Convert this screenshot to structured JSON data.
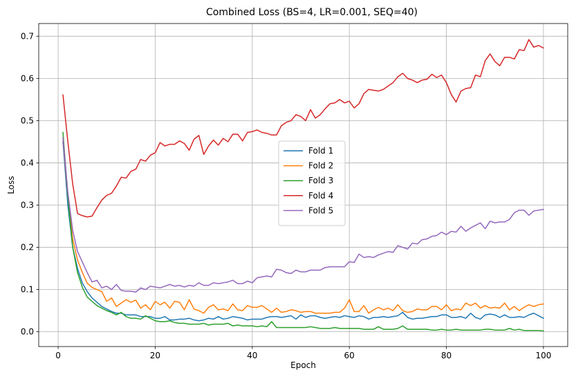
{
  "chart_data": {
    "type": "line",
    "title": "Combined Loss (BS=4, LR=0.001, SEQ=40)",
    "xlabel": "Epoch",
    "ylabel": "Loss",
    "xlim": [
      -4,
      105
    ],
    "ylim": [
      -0.035,
      0.73
    ],
    "x_ticks": [
      0,
      20,
      40,
      60,
      80,
      100
    ],
    "y_ticks": [
      0.0,
      0.1,
      0.2,
      0.3,
      0.4,
      0.5,
      0.6,
      0.7
    ],
    "grid": true,
    "legend_position": "center-right",
    "x": [
      1,
      2,
      3,
      4,
      5,
      6,
      7,
      8,
      9,
      10,
      11,
      12,
      13,
      14,
      15,
      16,
      17,
      18,
      19,
      20,
      21,
      22,
      23,
      24,
      25,
      26,
      27,
      28,
      29,
      30,
      31,
      32,
      33,
      34,
      35,
      36,
      37,
      38,
      39,
      40,
      41,
      42,
      43,
      44,
      45,
      46,
      47,
      48,
      49,
      50,
      51,
      52,
      53,
      54,
      55,
      56,
      57,
      58,
      59,
      60,
      61,
      62,
      63,
      64,
      65,
      66,
      67,
      68,
      69,
      70,
      71,
      72,
      73,
      74,
      75,
      76,
      77,
      78,
      79,
      80,
      81,
      82,
      83,
      84,
      85,
      86,
      87,
      88,
      89,
      90,
      91,
      92,
      93,
      94,
      95,
      96,
      97,
      98,
      99,
      100
    ],
    "series": [
      {
        "name": "Fold 1",
        "color": "#1f77b4",
        "values": [
          0.45,
          0.3,
          0.2,
          0.15,
          0.115,
          0.095,
          0.08,
          0.07,
          0.06,
          0.054,
          0.048,
          0.044,
          0.044,
          0.04,
          0.04,
          0.04,
          0.036,
          0.036,
          0.036,
          0.032,
          0.032,
          0.036,
          0.028,
          0.028,
          0.03,
          0.03,
          0.032,
          0.028,
          0.026,
          0.028,
          0.032,
          0.03,
          0.036,
          0.03,
          0.032,
          0.036,
          0.034,
          0.032,
          0.028,
          0.03,
          0.03,
          0.03,
          0.034,
          0.036,
          0.036,
          0.034,
          0.036,
          0.038,
          0.03,
          0.04,
          0.034,
          0.038,
          0.038,
          0.034,
          0.032,
          0.034,
          0.036,
          0.034,
          0.038,
          0.036,
          0.034,
          0.038,
          0.036,
          0.03,
          0.034,
          0.034,
          0.036,
          0.034,
          0.036,
          0.038,
          0.046,
          0.034,
          0.03,
          0.032,
          0.032,
          0.034,
          0.036,
          0.036,
          0.04,
          0.04,
          0.034,
          0.034,
          0.036,
          0.032,
          0.044,
          0.034,
          0.03,
          0.04,
          0.042,
          0.04,
          0.034,
          0.04,
          0.034,
          0.034,
          0.036,
          0.034,
          0.04,
          0.044,
          0.038,
          0.032
        ]
      },
      {
        "name": "Fold 2",
        "color": "#ff7f0e",
        "values": [
          0.46,
          0.32,
          0.22,
          0.17,
          0.14,
          0.115,
          0.105,
          0.1,
          0.095,
          0.072,
          0.08,
          0.06,
          0.068,
          0.076,
          0.07,
          0.075,
          0.056,
          0.064,
          0.052,
          0.072,
          0.064,
          0.07,
          0.056,
          0.072,
          0.07,
          0.052,
          0.076,
          0.054,
          0.05,
          0.044,
          0.058,
          0.064,
          0.052,
          0.054,
          0.05,
          0.066,
          0.052,
          0.05,
          0.062,
          0.058,
          0.058,
          0.062,
          0.054,
          0.046,
          0.056,
          0.046,
          0.048,
          0.052,
          0.05,
          0.046,
          0.048,
          0.048,
          0.044,
          0.044,
          0.044,
          0.044,
          0.046,
          0.046,
          0.056,
          0.076,
          0.048,
          0.048,
          0.062,
          0.044,
          0.052,
          0.058,
          0.052,
          0.056,
          0.05,
          0.064,
          0.05,
          0.046,
          0.048,
          0.054,
          0.052,
          0.052,
          0.06,
          0.06,
          0.052,
          0.064,
          0.05,
          0.054,
          0.052,
          0.068,
          0.062,
          0.068,
          0.056,
          0.062,
          0.056,
          0.058,
          0.056,
          0.068,
          0.052,
          0.06,
          0.05,
          0.058,
          0.064,
          0.06,
          0.064,
          0.066
        ]
      },
      {
        "name": "Fold 3",
        "color": "#2ca02c",
        "values": [
          0.472,
          0.32,
          0.2,
          0.14,
          0.105,
          0.082,
          0.072,
          0.062,
          0.056,
          0.05,
          0.046,
          0.04,
          0.046,
          0.036,
          0.032,
          0.032,
          0.03,
          0.038,
          0.032,
          0.026,
          0.024,
          0.024,
          0.026,
          0.022,
          0.02,
          0.02,
          0.018,
          0.018,
          0.018,
          0.02,
          0.016,
          0.018,
          0.018,
          0.018,
          0.02,
          0.014,
          0.016,
          0.014,
          0.014,
          0.014,
          0.012,
          0.014,
          0.012,
          0.024,
          0.01,
          0.01,
          0.01,
          0.01,
          0.01,
          0.01,
          0.01,
          0.012,
          0.01,
          0.008,
          0.008,
          0.008,
          0.01,
          0.008,
          0.008,
          0.008,
          0.008,
          0.008,
          0.006,
          0.006,
          0.006,
          0.012,
          0.006,
          0.006,
          0.006,
          0.008,
          0.014,
          0.006,
          0.006,
          0.006,
          0.006,
          0.006,
          0.004,
          0.004,
          0.006,
          0.004,
          0.004,
          0.006,
          0.004,
          0.004,
          0.004,
          0.004,
          0.004,
          0.006,
          0.006,
          0.004,
          0.004,
          0.004,
          0.008,
          0.004,
          0.006,
          0.003,
          0.003,
          0.003,
          0.003,
          0.002
        ]
      },
      {
        "name": "Fold 4",
        "color": "#d62728",
        "values": [
          0.561,
          0.45,
          0.35,
          0.28,
          0.275,
          0.272,
          0.274,
          0.294,
          0.312,
          0.323,
          0.328,
          0.345,
          0.366,
          0.364,
          0.38,
          0.385,
          0.408,
          0.404,
          0.418,
          0.424,
          0.448,
          0.44,
          0.444,
          0.444,
          0.452,
          0.446,
          0.43,
          0.456,
          0.465,
          0.42,
          0.44,
          0.454,
          0.442,
          0.458,
          0.45,
          0.468,
          0.468,
          0.452,
          0.472,
          0.474,
          0.478,
          0.472,
          0.47,
          0.466,
          0.466,
          0.488,
          0.496,
          0.5,
          0.514,
          0.51,
          0.5,
          0.526,
          0.506,
          0.514,
          0.528,
          0.54,
          0.542,
          0.55,
          0.542,
          0.546,
          0.53,
          0.54,
          0.564,
          0.574,
          0.572,
          0.57,
          0.574,
          0.582,
          0.59,
          0.604,
          0.612,
          0.6,
          0.596,
          0.59,
          0.596,
          0.598,
          0.61,
          0.602,
          0.608,
          0.59,
          0.562,
          0.544,
          0.57,
          0.576,
          0.578,
          0.608,
          0.604,
          0.642,
          0.658,
          0.64,
          0.63,
          0.65,
          0.65,
          0.646,
          0.668,
          0.666,
          0.692,
          0.674,
          0.678,
          0.672
        ]
      },
      {
        "name": "Fold 5",
        "color": "#9467bd",
        "values": [
          0.46,
          0.33,
          0.24,
          0.19,
          0.165,
          0.14,
          0.118,
          0.122,
          0.104,
          0.108,
          0.1,
          0.112,
          0.098,
          0.096,
          0.096,
          0.094,
          0.104,
          0.1,
          0.108,
          0.106,
          0.104,
          0.108,
          0.112,
          0.108,
          0.11,
          0.106,
          0.11,
          0.108,
          0.116,
          0.11,
          0.11,
          0.116,
          0.114,
          0.116,
          0.118,
          0.122,
          0.114,
          0.114,
          0.12,
          0.116,
          0.128,
          0.13,
          0.132,
          0.13,
          0.148,
          0.146,
          0.14,
          0.138,
          0.146,
          0.142,
          0.142,
          0.146,
          0.146,
          0.146,
          0.152,
          0.154,
          0.154,
          0.154,
          0.154,
          0.166,
          0.164,
          0.184,
          0.176,
          0.178,
          0.176,
          0.182,
          0.186,
          0.19,
          0.188,
          0.204,
          0.2,
          0.196,
          0.21,
          0.208,
          0.218,
          0.22,
          0.226,
          0.228,
          0.236,
          0.23,
          0.238,
          0.236,
          0.25,
          0.238,
          0.246,
          0.252,
          0.258,
          0.244,
          0.262,
          0.258,
          0.26,
          0.26,
          0.266,
          0.282,
          0.288,
          0.288,
          0.276,
          0.286,
          0.288,
          0.29
        ]
      }
    ]
  }
}
